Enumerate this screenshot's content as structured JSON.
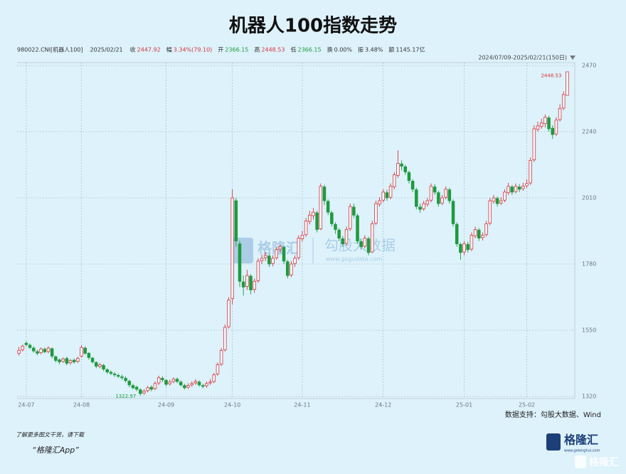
{
  "chart_data": {
    "type": "candlestick",
    "title": "机器人100指数走势",
    "info": [
      {
        "label": "980022.CNI[机器人100]",
        "value": "",
        "color": "#333333"
      },
      {
        "label": "2025/02/21",
        "value": "",
        "color": "#333333"
      },
      {
        "label": "收",
        "value": "2447.92",
        "color": "#d9363e"
      },
      {
        "label": "幅",
        "value": "3.34%(79.10)",
        "color": "#d9363e"
      },
      {
        "label": "开",
        "value": "2366.15",
        "color": "#1f9a3f"
      },
      {
        "label": "高",
        "value": "2448.53",
        "color": "#d9363e"
      },
      {
        "label": "低",
        "value": "2366.15",
        "color": "#1f9a3f"
      },
      {
        "label": "换",
        "value": "0.00%",
        "color": "#333333"
      },
      {
        "label": "振",
        "value": "3.48%",
        "color": "#333333"
      },
      {
        "label": "额",
        "value": "1145.17亿",
        "color": "#333333"
      }
    ],
    "range_label": "2024/07/09-2025/02/21(150日)",
    "source": "数据支持：勾股大数据、Wind",
    "watermark": "勾股大数据",
    "watermark_url": "www.gogudata.com",
    "watermark_logo": "格隆汇",
    "footer_line1": "了解更多图文干货，请下载",
    "footer_line2": "“格隆汇App”",
    "logo": "格隆汇",
    "logo_url": "www.gelonghui.com",
    "corner_logo": "格隆汇",
    "up_color": "#d9363e",
    "down_color": "#1f9a3f",
    "grid": true,
    "ylim": [
      1320,
      2470
    ],
    "yticks": [
      1320,
      1550,
      1780,
      2010,
      2240,
      2470
    ],
    "categories": [
      null,
      null,
      "24-07",
      null,
      null,
      null,
      null,
      null,
      null,
      null,
      null,
      null,
      null,
      null,
      null,
      null,
      null,
      "24-08",
      null,
      null,
      null,
      null,
      null,
      null,
      null,
      null,
      null,
      null,
      null,
      null,
      null,
      null,
      null,
      null,
      null,
      null,
      null,
      null,
      null,
      null,
      "24-09",
      null,
      null,
      null,
      null,
      null,
      null,
      null,
      null,
      null,
      null,
      null,
      null,
      null,
      null,
      null,
      null,
      null,
      "24-10",
      null,
      null,
      null,
      null,
      null,
      null,
      null,
      null,
      null,
      null,
      null,
      null,
      null,
      null,
      null,
      null,
      null,
      null,
      "24-11",
      null,
      null,
      null,
      null,
      null,
      null,
      null,
      null,
      null,
      null,
      null,
      null,
      null,
      null,
      null,
      null,
      null,
      null,
      null,
      null,
      null,
      "24-12",
      null,
      null,
      null,
      null,
      null,
      null,
      null,
      null,
      null,
      null,
      null,
      null,
      null,
      null,
      null,
      null,
      null,
      null,
      null,
      null,
      null,
      "25-01",
      null,
      null,
      null,
      null,
      null,
      null,
      null,
      null,
      null,
      null,
      null,
      null,
      null,
      null,
      null,
      null,
      "25-02",
      null,
      null,
      null,
      null,
      null,
      null,
      null,
      null,
      null,
      null,
      null
    ],
    "open": [
      1470,
      1482,
      1505,
      1498,
      1488,
      1476,
      1472,
      1484,
      1476,
      1486,
      1458,
      1447,
      1442,
      1452,
      1437,
      1446,
      1442,
      1460,
      1488,
      1470,
      1453,
      1438,
      1424,
      1428,
      1413,
      1404,
      1398,
      1393,
      1388,
      1383,
      1373,
      1358,
      1352,
      1343,
      1332,
      1340,
      1352,
      1347,
      1367,
      1383,
      1376,
      1364,
      1372,
      1380,
      1370,
      1358,
      1352,
      1360,
      1367,
      1370,
      1358,
      1357,
      1367,
      1372,
      1398,
      1432,
      1482,
      1562,
      1660,
      2000,
      1850,
      1718,
      1702,
      1738,
      1692,
      1722,
      1792,
      1802,
      1808,
      1782,
      1802,
      1832,
      1838,
      1788,
      1742,
      1782,
      1802,
      1868,
      1882,
      1928,
      1948,
      1958,
      1902,
      2048,
      1998,
      1958,
      1918,
      1898,
      1868,
      1852,
      1902,
      1978,
      1948,
      1858,
      1842,
      1868,
      1822,
      1922,
      1988,
      2002,
      2028,
      2012,
      2048,
      2088,
      2128,
      2118,
      2098,
      2068,
      2038,
      1978,
      1972,
      1988,
      2002,
      2048,
      2028,
      1992,
      2012,
      2038,
      1998,
      1918,
      1848,
      1822,
      1848,
      1832,
      1878,
      1898,
      1872,
      1882,
      1922,
      1998,
      2008,
      1992,
      2002,
      2028,
      2048,
      2032,
      2048,
      2042,
      2052,
      2062,
      2142,
      2248,
      2258,
      2268,
      2288,
      2252,
      2232,
      2282,
      2322,
      2366.15
    ],
    "high": [
      1492,
      1500,
      1512,
      1504,
      1494,
      1482,
      1490,
      1490,
      1494,
      1490,
      1462,
      1452,
      1456,
      1458,
      1450,
      1452,
      1458,
      1498,
      1494,
      1474,
      1458,
      1442,
      1436,
      1433,
      1418,
      1410,
      1405,
      1400,
      1396,
      1390,
      1378,
      1364,
      1358,
      1348,
      1345,
      1356,
      1358,
      1372,
      1392,
      1390,
      1380,
      1378,
      1386,
      1386,
      1376,
      1364,
      1366,
      1372,
      1380,
      1376,
      1364,
      1372,
      1380,
      1402,
      1438,
      1488,
      1570,
      1665,
      2040,
      2010,
      1860,
      1740,
      1760,
      1745,
      1730,
      1800,
      1812,
      1822,
      1815,
      1810,
      1838,
      1848,
      1845,
      1795,
      1790,
      1810,
      1880,
      1895,
      1940,
      1965,
      1975,
      1965,
      2060,
      2055,
      2005,
      1965,
      1925,
      1905,
      1878,
      1910,
      1990,
      1990,
      1955,
      1868,
      1880,
      1875,
      1930,
      2000,
      2012,
      2040,
      2038,
      2060,
      2100,
      2175,
      2140,
      2125,
      2105,
      2075,
      2045,
      1990,
      2000,
      2010,
      2060,
      2058,
      2035,
      2020,
      2050,
      2045,
      2005,
      1925,
      1855,
      1860,
      1858,
      1890,
      1910,
      1905,
      1890,
      1930,
      2010,
      2020,
      2015,
      2012,
      2040,
      2062,
      2055,
      2060,
      2058,
      2062,
      2075,
      2150,
      2262,
      2275,
      2285,
      2300,
      2295,
      2262,
      2290,
      2335,
      2380,
      2448.53
    ],
    "low": [
      1462,
      1476,
      1494,
      1484,
      1472,
      1463,
      1466,
      1470,
      1470,
      1452,
      1438,
      1432,
      1436,
      1428,
      1430,
      1434,
      1436,
      1455,
      1465,
      1448,
      1434,
      1418,
      1418,
      1408,
      1398,
      1394,
      1388,
      1384,
      1378,
      1368,
      1352,
      1344,
      1338,
      1322.97,
      1326,
      1334,
      1338,
      1342,
      1360,
      1370,
      1355,
      1358,
      1366,
      1366,
      1354,
      1344,
      1346,
      1354,
      1360,
      1354,
      1348,
      1350,
      1360,
      1366,
      1392,
      1426,
      1476,
      1556,
      1640,
      1840,
      1700,
      1670,
      1690,
      1675,
      1680,
      1715,
      1780,
      1790,
      1770,
      1772,
      1795,
      1820,
      1780,
      1730,
      1735,
      1770,
      1795,
      1858,
      1875,
      1918,
      1935,
      1890,
      1898,
      1985,
      1950,
      1910,
      1885,
      1860,
      1840,
      1845,
      1895,
      1940,
      1850,
      1830,
      1835,
      1810,
      1818,
      1915,
      1980,
      1995,
      2000,
      2005,
      2040,
      2080,
      2105,
      2090,
      2060,
      2030,
      1970,
      1958,
      1965,
      1980,
      1995,
      2020,
      1980,
      1985,
      2005,
      1990,
      1910,
      1840,
      1795,
      1810,
      1820,
      1825,
      1870,
      1860,
      1862,
      1875,
      1915,
      1990,
      1980,
      1985,
      1995,
      2020,
      2020,
      2025,
      2030,
      2035,
      2045,
      2055,
      2135,
      2240,
      2250,
      2255,
      2240,
      2215,
      2225,
      2275,
      2315,
      2366.15
    ],
    "close": [
      1480,
      1495,
      1500,
      1490,
      1478,
      1470,
      1485,
      1475,
      1488,
      1460,
      1445,
      1440,
      1450,
      1435,
      1445,
      1440,
      1452,
      1490,
      1470,
      1455,
      1440,
      1425,
      1430,
      1415,
      1405,
      1400,
      1395,
      1390,
      1385,
      1375,
      1360,
      1350,
      1345,
      1330,
      1338,
      1350,
      1345,
      1365,
      1385,
      1378,
      1362,
      1370,
      1380,
      1372,
      1360,
      1350,
      1358,
      1365,
      1372,
      1360,
      1355,
      1365,
      1370,
      1395,
      1430,
      1480,
      1560,
      1655,
      2010,
      1860,
      1720,
      1700,
      1740,
      1690,
      1720,
      1790,
      1800,
      1810,
      1780,
      1800,
      1830,
      1840,
      1790,
      1740,
      1780,
      1800,
      1870,
      1880,
      1930,
      1950,
      1960,
      1900,
      2050,
      2000,
      1960,
      1920,
      1900,
      1870,
      1850,
      1900,
      1980,
      1950,
      1860,
      1840,
      1870,
      1820,
      1920,
      1990,
      2000,
      2030,
      2010,
      2050,
      2090,
      2130,
      2120,
      2100,
      2070,
      2040,
      1980,
      1970,
      1990,
      2000,
      2050,
      2030,
      1990,
      2010,
      2040,
      2000,
      1920,
      1850,
      1820,
      1850,
      1830,
      1880,
      1900,
      1870,
      1880,
      1920,
      2000,
      2010,
      1990,
      2000,
      2030,
      2050,
      2030,
      2050,
      2040,
      2050,
      2060,
      2140,
      2250,
      2260,
      2270,
      2290,
      2250,
      2230,
      2280,
      2320,
      2368.82,
      2447.92
    ]
  }
}
